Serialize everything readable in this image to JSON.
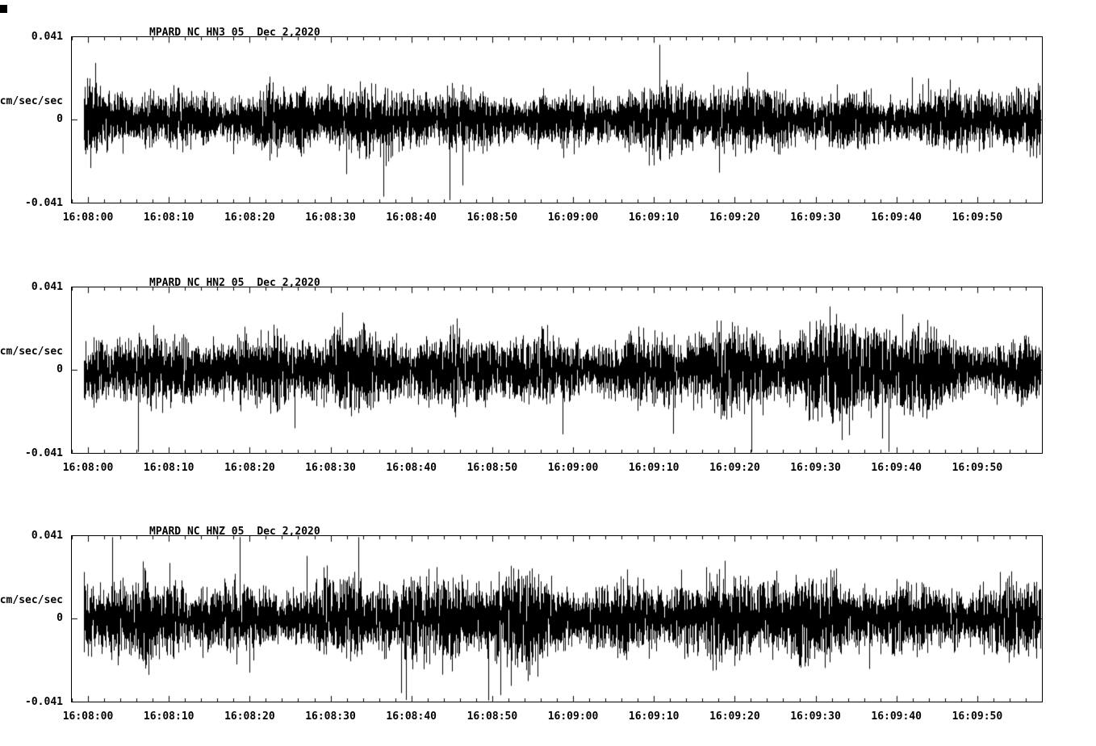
{
  "page": {
    "background": "#ffffff",
    "trace_color": "#000000",
    "text_color": "#000000"
  },
  "chart_data": [
    {
      "type": "line",
      "subtype": "seismogram",
      "station": "MPARD_NC_HN3_05",
      "date": "Dec 2,2020",
      "title": "MPARD_NC_HN3_05  Dec 2,2020",
      "ylabel": "cm/sec/sec",
      "ylim": [
        -0.041,
        0.041
      ],
      "yticks": [
        "0.041",
        "0",
        "-0.041"
      ],
      "ytick_values": [
        0.041,
        0,
        -0.041
      ],
      "x_start": "16:07:58",
      "x_end": "16:09:58",
      "x_span_seconds": 120,
      "x_major_tick_interval_sec": 10,
      "x_minor_tick_interval_sec": 2,
      "xticklabels": [
        "16:08:00",
        "16:08:10",
        "16:08:20",
        "16:08:30",
        "16:08:40",
        "16:08:50",
        "16:09:00",
        "16:09:10",
        "16:09:20",
        "16:09:30",
        "16:09:40",
        "16:09:50"
      ],
      "series_description": "continuous broadband seismic background noise, zero-mean",
      "approx_band_amplitude": 0.013,
      "approx_peak_amplitude": 0.036,
      "grid": false,
      "legend": false
    },
    {
      "type": "line",
      "subtype": "seismogram",
      "station": "MPARD_NC_HN2_05",
      "date": "Dec 2,2020",
      "title": "MPARD_NC_HN2_05  Dec 2,2020",
      "ylabel": "cm/sec/sec",
      "ylim": [
        -0.041,
        0.041
      ],
      "yticks": [
        "0.041",
        "0",
        "-0.041"
      ],
      "ytick_values": [
        0.041,
        0,
        -0.041
      ],
      "x_start": "16:07:58",
      "x_end": "16:09:58",
      "x_span_seconds": 120,
      "x_major_tick_interval_sec": 10,
      "x_minor_tick_interval_sec": 2,
      "xticklabels": [
        "16:08:00",
        "16:08:10",
        "16:08:20",
        "16:08:30",
        "16:08:40",
        "16:08:50",
        "16:09:00",
        "16:09:10",
        "16:09:20",
        "16:09:30",
        "16:09:40",
        "16:09:50"
      ],
      "series_description": "continuous seismic noise with amplitude swells near 16:08:30, 16:09:15 and 16:09:35-16:09:40 (peaks near 0.04)",
      "approx_band_amplitude": 0.015,
      "approx_peak_amplitude": 0.041,
      "grid": false,
      "legend": false
    },
    {
      "type": "line",
      "subtype": "seismogram",
      "station": "MPARD_NC_HNZ_05",
      "date": "Dec 2,2020",
      "title": "MPARD_NC_HNZ_05  Dec 2,2020",
      "ylabel": "cm/sec/sec",
      "ylim": [
        -0.041,
        0.041
      ],
      "yticks": [
        "0.041",
        "0",
        "-0.041"
      ],
      "ytick_values": [
        0.041,
        0,
        -0.041
      ],
      "x_start": "16:07:58",
      "x_end": "16:09:58",
      "x_span_seconds": 120,
      "x_major_tick_interval_sec": 10,
      "x_minor_tick_interval_sec": 2,
      "xticklabels": [
        "16:08:00",
        "16:08:10",
        "16:08:20",
        "16:08:30",
        "16:08:40",
        "16:08:50",
        "16:09:00",
        "16:09:10",
        "16:09:20",
        "16:09:30",
        "16:09:40",
        "16:09:50"
      ],
      "series_description": "continuous seismic noise, denser/larger band than horizontals, burst near 16:08:53",
      "approx_band_amplitude": 0.018,
      "approx_peak_amplitude": 0.038,
      "grid": false,
      "legend": false
    }
  ]
}
